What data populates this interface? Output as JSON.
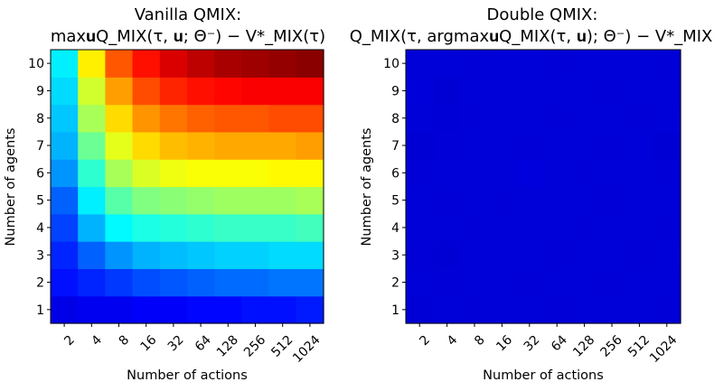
{
  "chart_data": [
    {
      "type": "heatmap",
      "title_line1": "Vanilla QMIX:",
      "title_line2": "max𝐮Q_MIX(τ, 𝐮; Θ⁻) − V*_MIX(τ)",
      "xlabel": "Number of actions",
      "ylabel": "Number of agents",
      "x": [
        "2",
        "4",
        "8",
        "16",
        "32",
        "64",
        "128",
        "256",
        "512",
        "1024"
      ],
      "y": [
        "1",
        "2",
        "3",
        "4",
        "5",
        "6",
        "7",
        "8",
        "9",
        "10"
      ],
      "colormap": "jet",
      "value_range": [
        0,
        1
      ],
      "colorbar": false,
      "values": [
        [
          0.1,
          0.11,
          0.11,
          0.12,
          0.12,
          0.13,
          0.13,
          0.14,
          0.14,
          0.15
        ],
        [
          0.14,
          0.16,
          0.18,
          0.2,
          0.21,
          0.22,
          0.23,
          0.23,
          0.24,
          0.24
        ],
        [
          0.16,
          0.22,
          0.27,
          0.3,
          0.31,
          0.32,
          0.33,
          0.33,
          0.34,
          0.34
        ],
        [
          0.19,
          0.3,
          0.37,
          0.4,
          0.41,
          0.42,
          0.43,
          0.43,
          0.43,
          0.44
        ],
        [
          0.22,
          0.36,
          0.46,
          0.5,
          0.51,
          0.52,
          0.53,
          0.53,
          0.53,
          0.54
        ],
        [
          0.27,
          0.42,
          0.54,
          0.59,
          0.61,
          0.62,
          0.62,
          0.62,
          0.63,
          0.63
        ],
        [
          0.3,
          0.48,
          0.6,
          0.66,
          0.69,
          0.7,
          0.71,
          0.71,
          0.71,
          0.72
        ],
        [
          0.32,
          0.54,
          0.66,
          0.73,
          0.76,
          0.78,
          0.79,
          0.79,
          0.8,
          0.8
        ],
        [
          0.34,
          0.58,
          0.72,
          0.8,
          0.84,
          0.86,
          0.87,
          0.88,
          0.88,
          0.88
        ],
        [
          0.36,
          0.64,
          0.79,
          0.86,
          0.91,
          0.94,
          0.96,
          0.97,
          0.98,
          0.99
        ]
      ]
    },
    {
      "type": "heatmap",
      "title_line1": "Double QMIX:",
      "title_line2": "Q_MIX(τ, argmax𝐮Q_MIX(τ, 𝐮); Θ⁻) − V*_MIX(τ)",
      "xlabel": "Number of actions",
      "ylabel": "Number of agents",
      "x": [
        "2",
        "4",
        "8",
        "16",
        "32",
        "64",
        "128",
        "256",
        "512",
        "1024"
      ],
      "y": [
        "1",
        "2",
        "3",
        "4",
        "5",
        "6",
        "7",
        "8",
        "9",
        "10"
      ],
      "colormap": "jet",
      "value_range": [
        0,
        1
      ],
      "colorbar": false,
      "values": [
        [
          0.085,
          0.088,
          0.086,
          0.087,
          0.088,
          0.086,
          0.087,
          0.088,
          0.087,
          0.086
        ],
        [
          0.087,
          0.086,
          0.088,
          0.087,
          0.086,
          0.088,
          0.087,
          0.086,
          0.088,
          0.087
        ],
        [
          0.086,
          0.084,
          0.087,
          0.088,
          0.087,
          0.086,
          0.088,
          0.087,
          0.086,
          0.088
        ],
        [
          0.088,
          0.087,
          0.086,
          0.087,
          0.088,
          0.087,
          0.086,
          0.088,
          0.087,
          0.086
        ],
        [
          0.087,
          0.086,
          0.088,
          0.086,
          0.087,
          0.088,
          0.087,
          0.086,
          0.088,
          0.087
        ],
        [
          0.086,
          0.088,
          0.087,
          0.088,
          0.092,
          0.087,
          0.086,
          0.087,
          0.088,
          0.086
        ],
        [
          0.083,
          0.086,
          0.088,
          0.087,
          0.086,
          0.088,
          0.087,
          0.086,
          0.087,
          0.084
        ],
        [
          0.087,
          0.085,
          0.086,
          0.088,
          0.087,
          0.086,
          0.088,
          0.087,
          0.086,
          0.088
        ],
        [
          0.09,
          0.084,
          0.087,
          0.088,
          0.087,
          0.088,
          0.087,
          0.086,
          0.088,
          0.087
        ],
        [
          0.088,
          0.087,
          0.086,
          0.087,
          0.088,
          0.086,
          0.087,
          0.088,
          0.087,
          0.086
        ]
      ]
    }
  ]
}
